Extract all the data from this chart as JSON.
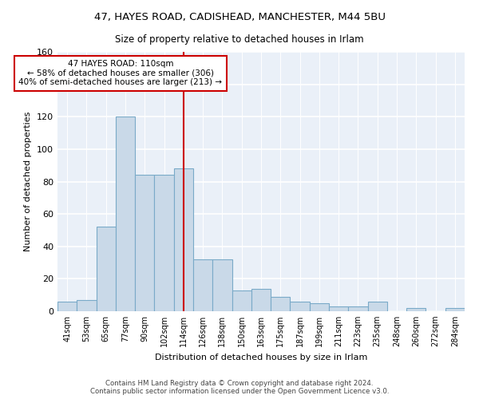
{
  "title1": "47, HAYES ROAD, CADISHEAD, MANCHESTER, M44 5BU",
  "title2": "Size of property relative to detached houses in Irlam",
  "xlabel": "Distribution of detached houses by size in Irlam",
  "ylabel": "Number of detached properties",
  "bar_labels": [
    "41sqm",
    "53sqm",
    "65sqm",
    "77sqm",
    "90sqm",
    "102sqm",
    "114sqm",
    "126sqm",
    "138sqm",
    "150sqm",
    "163sqm",
    "175sqm",
    "187sqm",
    "199sqm",
    "211sqm",
    "223sqm",
    "235sqm",
    "248sqm",
    "260sqm",
    "272sqm",
    "284sqm"
  ],
  "bar_values": [
    6,
    7,
    52,
    120,
    84,
    84,
    88,
    32,
    32,
    13,
    14,
    9,
    6,
    5,
    3,
    3,
    6,
    0,
    2,
    0,
    2
  ],
  "bar_color": "#c9d9e8",
  "bar_edge_color": "#7aaac8",
  "vline_x_index": 6,
  "vline_color": "#cc0000",
  "annotation_line1": "47 HAYES ROAD: 110sqm",
  "annotation_line2": "← 58% of detached houses are smaller (306)",
  "annotation_line3": "40% of semi-detached houses are larger (213) →",
  "annotation_box_color": "#ffffff",
  "annotation_box_edge": "#cc0000",
  "ylim": [
    0,
    160
  ],
  "yticks": [
    0,
    20,
    40,
    60,
    80,
    100,
    120,
    140,
    160
  ],
  "footer": "Contains HM Land Registry data © Crown copyright and database right 2024.\nContains public sector information licensed under the Open Government Licence v3.0.",
  "plot_bg_color": "#eaf0f8"
}
